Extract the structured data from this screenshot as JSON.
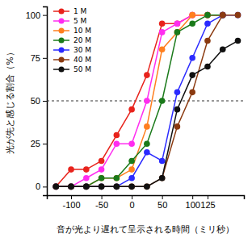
{
  "chart_data": {
    "type": "line",
    "x_label": "音が光より遅れて呈示される時間（ミリ秒）",
    "y_label": "光が先と感じる割合（%）",
    "x": [
      -125,
      -100,
      -75,
      -50,
      -25,
      0,
      25,
      50,
      75,
      100,
      125,
      150,
      175
    ],
    "series": [
      {
        "name": "1 M",
        "color": "#e8231c",
        "values": [
          0,
          10,
          10,
          15,
          30,
          45,
          65,
          95,
          95,
          100,
          100,
          100,
          null
        ]
      },
      {
        "name": "5 M",
        "color": "#ff2cf0",
        "values": [
          0,
          0,
          5,
          10,
          25,
          25,
          50,
          90,
          95,
          100,
          100,
          100,
          null
        ]
      },
      {
        "name": "10 M",
        "color": "#ff7f1e",
        "values": [
          0,
          0,
          0,
          5,
          5,
          10,
          35,
          80,
          90,
          100,
          100,
          100,
          null
        ]
      },
      {
        "name": "20 M",
        "color": "#1a7a1a",
        "values": [
          0,
          0,
          0,
          5,
          5,
          15,
          25,
          50,
          90,
          95,
          100,
          100,
          null
        ]
      },
      {
        "name": "30 M",
        "color": "#2a2aff",
        "values": [
          0,
          0,
          0,
          0,
          0,
          5,
          20,
          15,
          55,
          75,
          95,
          100,
          100
        ]
      },
      {
        "name": "40 M",
        "color": "#8b3a10",
        "values": [
          0,
          0,
          0,
          0,
          0,
          0,
          0,
          5,
          35,
          55,
          85,
          100,
          100
        ]
      },
      {
        "name": "50 M",
        "color": "#111111",
        "values": [
          0,
          0,
          0,
          0,
          0,
          0,
          0,
          5,
          45,
          65,
          70,
          80,
          85
        ]
      }
    ],
    "xlim": [
      -140,
      185
    ],
    "xticks": [
      -100,
      -50,
      0,
      50,
      100,
      125
    ],
    "ylim": [
      -5,
      105
    ],
    "yticks": [
      0,
      25,
      50,
      75,
      100
    ],
    "hlines": [
      50
    ],
    "marker": "circle",
    "line_style": "solid",
    "legend": "upper left",
    "grid": false
  }
}
